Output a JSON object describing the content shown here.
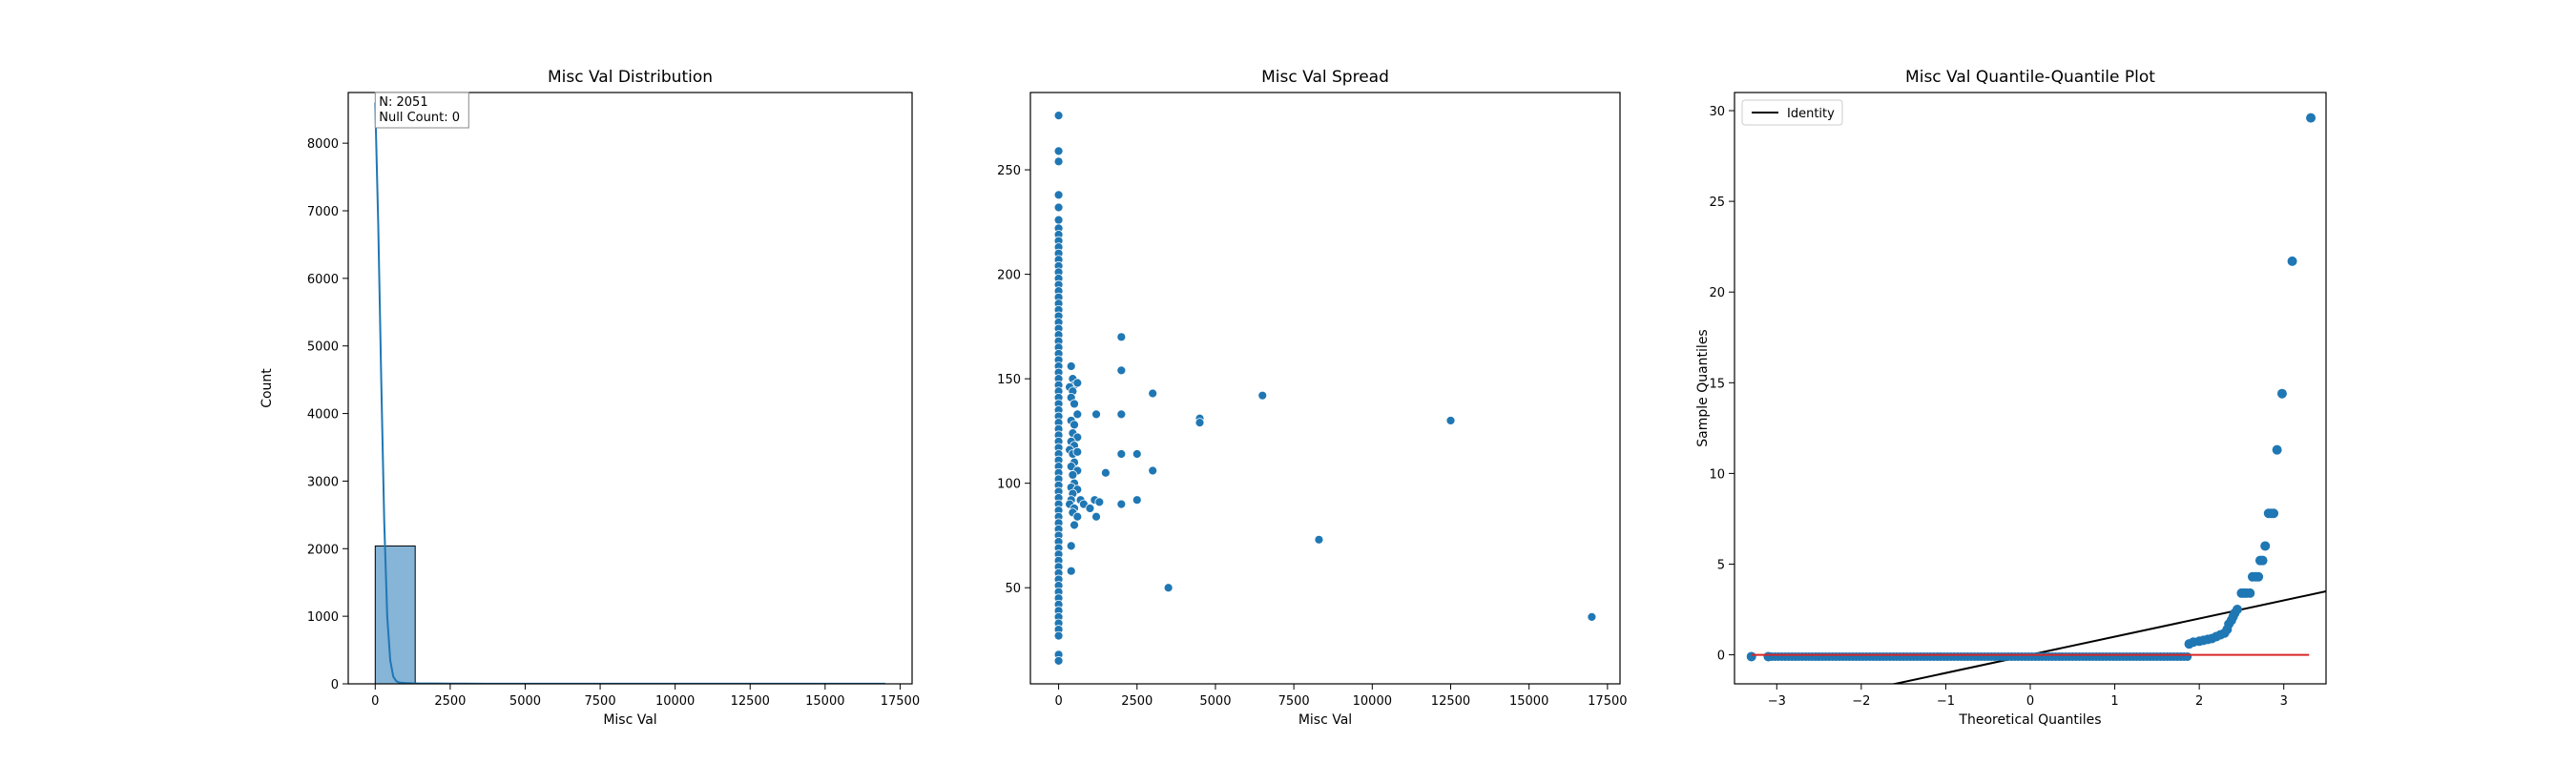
{
  "chart_data": [
    {
      "type": "histogram",
      "title": "Misc Val Distribution",
      "xlabel": "Misc Val",
      "ylabel": "Count",
      "xlim": [
        -900,
        17900
      ],
      "ylim": [
        0,
        8750
      ],
      "xticks": [
        0,
        2500,
        5000,
        7500,
        10000,
        12500,
        15000,
        17500
      ],
      "yticks": [
        0,
        1000,
        2000,
        3000,
        4000,
        5000,
        6000,
        7000,
        8000
      ],
      "bins": [
        {
          "x0": 0,
          "x1": 1333,
          "count": 2040
        },
        {
          "x0": 1333,
          "x1": 2667,
          "count": 5
        },
        {
          "x0": 2667,
          "x1": 4000,
          "count": 1
        },
        {
          "x0": 4000,
          "x1": 5333,
          "count": 2
        },
        {
          "x0": 5333,
          "x1": 6667,
          "count": 1
        },
        {
          "x0": 6667,
          "x1": 8000,
          "count": 0
        },
        {
          "x0": 8000,
          "x1": 9333,
          "count": 1
        },
        {
          "x0": 9333,
          "x1": 10667,
          "count": 0
        },
        {
          "x0": 10667,
          "x1": 12000,
          "count": 0
        },
        {
          "x0": 12000,
          "x1": 13333,
          "count": 1
        },
        {
          "x0": 13333,
          "x1": 14667,
          "count": 0
        },
        {
          "x0": 14667,
          "x1": 16000,
          "count": 0
        },
        {
          "x0": 16000,
          "x1": 17000,
          "count": 1
        }
      ],
      "kde": {
        "x": [
          0,
          100,
          200,
          300,
          400,
          500,
          600,
          700,
          800,
          1000,
          1200,
          1500,
          2000,
          2500,
          3000,
          4000,
          5000,
          7500,
          10000,
          12500,
          15000,
          17000
        ],
        "y": [
          8600,
          6800,
          4500,
          2400,
          1000,
          350,
          110,
          40,
          20,
          12,
          8,
          6,
          5,
          4,
          3,
          2,
          2,
          1,
          1,
          1,
          1,
          1
        ]
      },
      "annotation": [
        "N: 2051",
        "Null Count: 0"
      ],
      "bar_color": "#86b5d8",
      "line_color": "#1f77b4"
    },
    {
      "type": "scatter",
      "title": "Misc Val Spread",
      "xlabel": "Misc Val",
      "ylabel": "",
      "xlim": [
        -900,
        17900
      ],
      "ylim": [
        4,
        287
      ],
      "xticks": [
        0,
        2500,
        5000,
        7500,
        10000,
        12500,
        15000,
        17500
      ],
      "yticks": [
        50,
        100,
        150,
        200,
        250
      ],
      "color": "#1f77b4",
      "points": [
        [
          0,
          276
        ],
        [
          0,
          259
        ],
        [
          0,
          254
        ],
        [
          0,
          238
        ],
        [
          0,
          232
        ],
        [
          0,
          226
        ],
        [
          0,
          222
        ],
        [
          0,
          219
        ],
        [
          0,
          216
        ],
        [
          0,
          213
        ],
        [
          0,
          210
        ],
        [
          0,
          207
        ],
        [
          0,
          204
        ],
        [
          0,
          201
        ],
        [
          0,
          198
        ],
        [
          0,
          195
        ],
        [
          0,
          192
        ],
        [
          0,
          189
        ],
        [
          0,
          186
        ],
        [
          0,
          183
        ],
        [
          0,
          180
        ],
        [
          0,
          177
        ],
        [
          0,
          174
        ],
        [
          0,
          171
        ],
        [
          0,
          168
        ],
        [
          0,
          165
        ],
        [
          0,
          162
        ],
        [
          0,
          159
        ],
        [
          0,
          156
        ],
        [
          0,
          153
        ],
        [
          0,
          150
        ],
        [
          0,
          147
        ],
        [
          0,
          144
        ],
        [
          0,
          141
        ],
        [
          0,
          138
        ],
        [
          0,
          135
        ],
        [
          0,
          132
        ],
        [
          0,
          129
        ],
        [
          0,
          126
        ],
        [
          0,
          123
        ],
        [
          0,
          120
        ],
        [
          0,
          117
        ],
        [
          0,
          114
        ],
        [
          0,
          111
        ],
        [
          0,
          108
        ],
        [
          0,
          105
        ],
        [
          0,
          102
        ],
        [
          0,
          99
        ],
        [
          0,
          96
        ],
        [
          0,
          93
        ],
        [
          0,
          90
        ],
        [
          0,
          87
        ],
        [
          0,
          84
        ],
        [
          0,
          81
        ],
        [
          0,
          78
        ],
        [
          0,
          75
        ],
        [
          0,
          72
        ],
        [
          0,
          69
        ],
        [
          0,
          66
        ],
        [
          0,
          63
        ],
        [
          0,
          60
        ],
        [
          0,
          57
        ],
        [
          0,
          54
        ],
        [
          0,
          51
        ],
        [
          0,
          48
        ],
        [
          0,
          45
        ],
        [
          0,
          42
        ],
        [
          0,
          39
        ],
        [
          0,
          36
        ],
        [
          0,
          33
        ],
        [
          0,
          30
        ],
        [
          0,
          27
        ],
        [
          0,
          18
        ],
        [
          0,
          15
        ],
        [
          400,
          156
        ],
        [
          450,
          150
        ],
        [
          500,
          147
        ],
        [
          600,
          148
        ],
        [
          350,
          146
        ],
        [
          450,
          144
        ],
        [
          400,
          141
        ],
        [
          500,
          138
        ],
        [
          600,
          133
        ],
        [
          400,
          130
        ],
        [
          500,
          128
        ],
        [
          450,
          124
        ],
        [
          600,
          122
        ],
        [
          400,
          120
        ],
        [
          500,
          118
        ],
        [
          350,
          116
        ],
        [
          450,
          114
        ],
        [
          600,
          115
        ],
        [
          500,
          110
        ],
        [
          400,
          108
        ],
        [
          600,
          106
        ],
        [
          450,
          104
        ],
        [
          500,
          100
        ],
        [
          400,
          98
        ],
        [
          600,
          97
        ],
        [
          450,
          95
        ],
        [
          400,
          92
        ],
        [
          350,
          90
        ],
        [
          500,
          88
        ],
        [
          450,
          86
        ],
        [
          600,
          84
        ],
        [
          500,
          80
        ],
        [
          400,
          70
        ],
        [
          400,
          58
        ],
        [
          700,
          92
        ],
        [
          800,
          90
        ],
        [
          1000,
          88
        ],
        [
          1150,
          92
        ],
        [
          1200,
          84
        ],
        [
          1300,
          91
        ],
        [
          1200,
          133
        ],
        [
          1500,
          105
        ],
        [
          2000,
          170
        ],
        [
          2000,
          154
        ],
        [
          2000,
          133
        ],
        [
          2000,
          114
        ],
        [
          2000,
          90
        ],
        [
          2500,
          114
        ],
        [
          2500,
          92
        ],
        [
          3000,
          143
        ],
        [
          3000,
          106
        ],
        [
          3500,
          50
        ],
        [
          4500,
          131
        ],
        [
          4500,
          129
        ],
        [
          6500,
          142
        ],
        [
          8300,
          73
        ],
        [
          12500,
          130
        ],
        [
          17000,
          36
        ]
      ]
    },
    {
      "type": "scatter",
      "title": "Misc Val Quantile-Quantile Plot",
      "xlabel": "Theoretical Quantiles",
      "ylabel": "Sample Quantiles",
      "xlim": [
        -3.5,
        3.5
      ],
      "ylim": [
        -1.6,
        31.0
      ],
      "xticks": [
        -3,
        -2,
        -1,
        0,
        1,
        2,
        3
      ],
      "yticks": [
        0,
        5,
        10,
        15,
        20,
        25,
        30
      ],
      "legend": {
        "label": "Identity",
        "placement": "top-left"
      },
      "identity_line": {
        "x": [
          -3.5,
          3.5
        ],
        "y": [
          -3.5,
          3.5
        ]
      },
      "reference_line": {
        "x": [
          -3.3,
          3.3
        ],
        "y": [
          0,
          0
        ]
      },
      "baseline_range": [
        -3.1,
        1.87
      ],
      "points": [
        [
          -3.3,
          -0.1
        ],
        [
          -3.1,
          -0.1
        ],
        [
          1.88,
          0.6
        ],
        [
          1.93,
          0.7
        ],
        [
          2.0,
          0.75
        ],
        [
          2.05,
          0.8
        ],
        [
          2.1,
          0.85
        ],
        [
          2.15,
          0.9
        ],
        [
          2.2,
          1.0
        ],
        [
          2.25,
          1.1
        ],
        [
          2.3,
          1.2
        ],
        [
          2.33,
          1.4
        ],
        [
          2.35,
          1.7
        ],
        [
          2.38,
          1.9
        ],
        [
          2.4,
          2.1
        ],
        [
          2.42,
          2.3
        ],
        [
          2.45,
          2.5
        ],
        [
          2.5,
          3.4
        ],
        [
          2.53,
          3.4
        ],
        [
          2.56,
          3.4
        ],
        [
          2.6,
          3.4
        ],
        [
          2.63,
          4.3
        ],
        [
          2.67,
          4.3
        ],
        [
          2.7,
          4.3
        ],
        [
          2.72,
          5.2
        ],
        [
          2.75,
          5.2
        ],
        [
          2.78,
          6.0
        ],
        [
          2.82,
          7.8
        ],
        [
          2.85,
          7.8
        ],
        [
          2.88,
          7.8
        ],
        [
          2.92,
          11.3
        ],
        [
          2.98,
          14.4
        ],
        [
          3.1,
          21.7
        ],
        [
          3.32,
          29.6
        ]
      ],
      "point_color": "#1f77b4",
      "identity_color": "#000000",
      "reference_color": "#d62728"
    }
  ]
}
